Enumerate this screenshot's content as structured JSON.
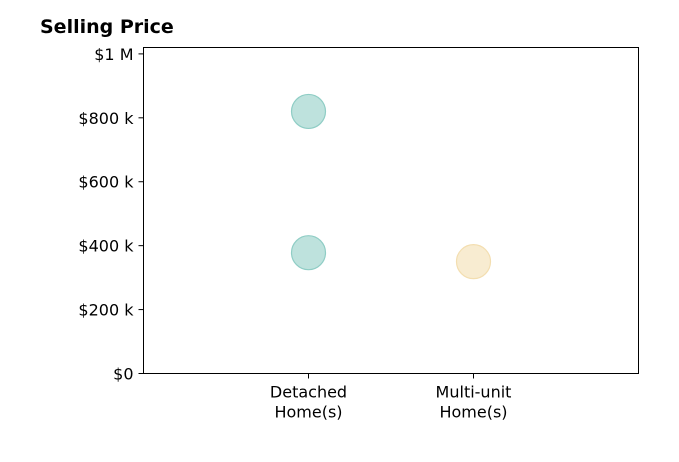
{
  "chart_data": {
    "type": "scatter",
    "title": "Selling Price",
    "xlabel": "",
    "ylabel": "",
    "categories": [
      "Detached Home(s)",
      "Multi-unit Home(s)"
    ],
    "category_lines": [
      [
        "Detached",
        "Home(s)"
      ],
      [
        "Multi-unit",
        "Home(s)"
      ]
    ],
    "ylim": [
      0,
      1020000
    ],
    "yticks": [
      {
        "value": 0,
        "label": "$0"
      },
      {
        "value": 200000,
        "label": "$200 k"
      },
      {
        "value": 400000,
        "label": "$400 k"
      },
      {
        "value": 600000,
        "label": "$600 k"
      },
      {
        "value": 800000,
        "label": "$800 k"
      },
      {
        "value": 1000000,
        "label": "$1 M"
      }
    ],
    "points": [
      {
        "category": "Detached Home(s)",
        "value": 820000
      },
      {
        "category": "Detached Home(s)",
        "value": 378000
      },
      {
        "category": "Multi-unit Home(s)",
        "value": 350000
      }
    ],
    "colors": {
      "Detached Home(s)": "#8fcdc5",
      "Multi-unit Home(s)": "#f3deb0"
    },
    "grid": false,
    "legend": "none"
  }
}
